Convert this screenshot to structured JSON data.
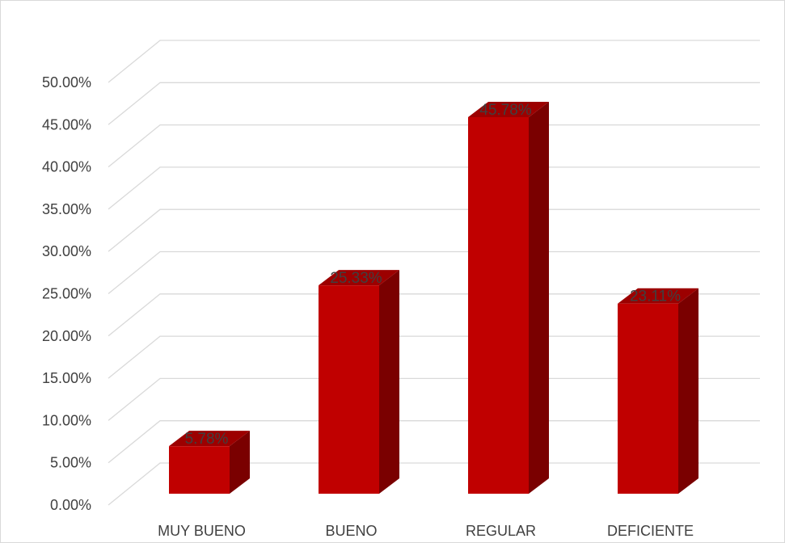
{
  "chart_data": {
    "type": "bar",
    "categories": [
      "MUY BUENO",
      "BUENO",
      "REGULAR",
      "DEFICIENTE"
    ],
    "values": [
      5.78,
      25.33,
      45.78,
      23.11
    ],
    "data_labels": [
      "5.78%",
      "25.33%",
      "45.78%",
      "23.11%"
    ],
    "yticks": [
      "0.00%",
      "5.00%",
      "10.00%",
      "15.00%",
      "20.00%",
      "25.00%",
      "30.00%",
      "35.00%",
      "40.00%",
      "45.00%",
      "50.00%"
    ],
    "ylim": [
      0,
      50
    ],
    "grid": true,
    "style": "3d-column",
    "colors": {
      "bar_front": "#c00000",
      "bar_side": "#7a0000",
      "bar_top": "#9c0000",
      "grid": "#d9d9d9",
      "text": "#404040"
    }
  }
}
